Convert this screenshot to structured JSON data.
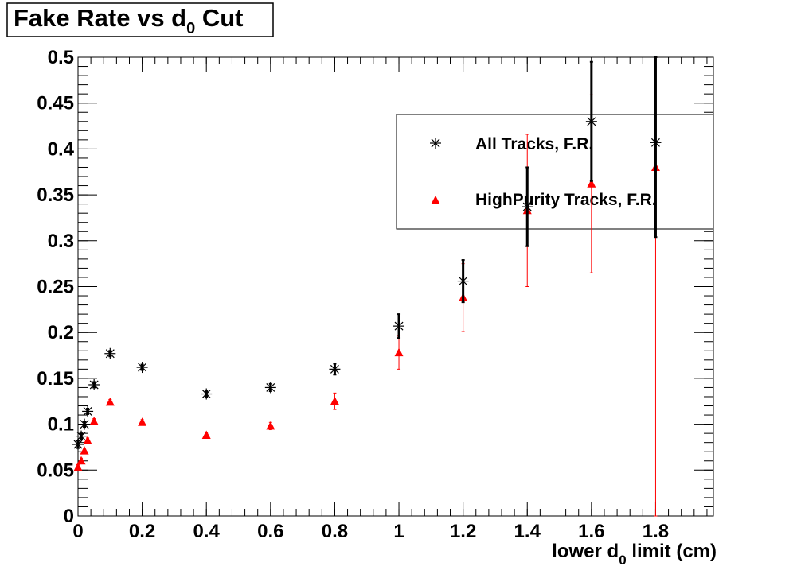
{
  "chart_data": {
    "type": "scatter",
    "title": "Fake Rate vs d",
    "title_subscript": "0",
    "title_suffix": " Cut",
    "xlabel": "lower d",
    "xlabel_subscript": "0",
    "xlabel_suffix": " limit (cm)",
    "ylabel": "",
    "xlim": [
      0,
      1.98
    ],
    "ylim": [
      0,
      0.5
    ],
    "x_ticks": [
      0,
      0.2,
      0.4,
      0.6,
      0.8,
      1,
      1.2,
      1.4,
      1.6,
      1.8
    ],
    "x_tick_labels": [
      "0",
      "0.2",
      "0.4",
      "0.6",
      "0.8",
      "1",
      "1.2",
      "1.4",
      "1.6",
      "1.8"
    ],
    "y_ticks": [
      0,
      0.05,
      0.1,
      0.15,
      0.2,
      0.25,
      0.3,
      0.35,
      0.4,
      0.45,
      0.5
    ],
    "y_tick_labels": [
      "0",
      "0.05",
      "0.1",
      "0.15",
      "0.2",
      "0.25",
      "0.3",
      "0.35",
      "0.4",
      "0.45",
      "0.5"
    ],
    "grid": false,
    "legend_position": "top-right",
    "series": [
      {
        "name": "All Tracks, F.R.",
        "marker": "star",
        "color": "#000000",
        "x": [
          0,
          0.01,
          0.02,
          0.03,
          0.05,
          0.1,
          0.2,
          0.4,
          0.6,
          0.8,
          1.0,
          1.2,
          1.4,
          1.6,
          1.8
        ],
        "y": [
          0.078,
          0.087,
          0.1,
          0.114,
          0.143,
          0.177,
          0.162,
          0.133,
          0.14,
          0.16,
          0.207,
          0.256,
          0.337,
          0.43,
          0.407
        ],
        "yerr": [
          0.004,
          0.003,
          0.003,
          0.003,
          0.003,
          0.003,
          0.003,
          0.003,
          0.004,
          0.006,
          0.013,
          0.023,
          0.043,
          0.065,
          0.103
        ]
      },
      {
        "name": "HighPurity Tracks, F.R.",
        "marker": "triangle",
        "color": "#ff0000",
        "x": [
          0,
          0.01,
          0.02,
          0.03,
          0.05,
          0.1,
          0.2,
          0.4,
          0.6,
          0.8,
          1.0,
          1.2,
          1.4,
          1.6,
          1.8
        ],
        "y": [
          0.053,
          0.06,
          0.071,
          0.082,
          0.103,
          0.124,
          0.102,
          0.088,
          0.098,
          0.125,
          0.178,
          0.238,
          0.333,
          0.362,
          0.38
        ],
        "yerr": [
          0.003,
          0.003,
          0.003,
          0.003,
          0.003,
          0.003,
          0.003,
          0.003,
          0.004,
          0.009,
          0.018,
          0.037,
          0.083,
          0.097,
          0.38
        ]
      }
    ]
  }
}
